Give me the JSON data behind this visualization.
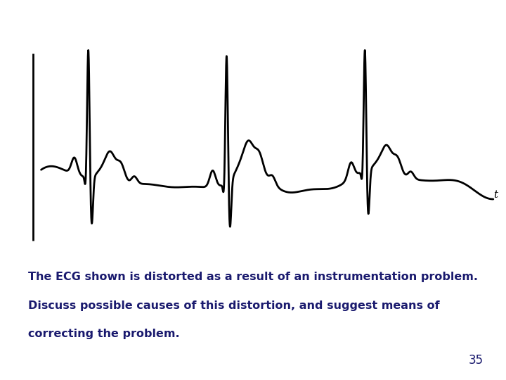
{
  "background_color": "#ffffff",
  "line_color": "#000000",
  "text_color": "#1a1a6e",
  "annotation_line1": "The ECG shown is distorted as a result of an instrumentation problem.",
  "annotation_line2": "Discuss possible causes of this distortion, and suggest means of",
  "annotation_line3": "correcting the problem.",
  "page_number": "35",
  "annotation_fontsize": 11.5,
  "page_num_fontsize": 12,
  "ecg_linewidth": 2.0,
  "t_label": "t",
  "beat_times": [
    0.18,
    1.22,
    2.26
  ],
  "beat_amplitudes": [
    1.0,
    1.0,
    0.95
  ]
}
